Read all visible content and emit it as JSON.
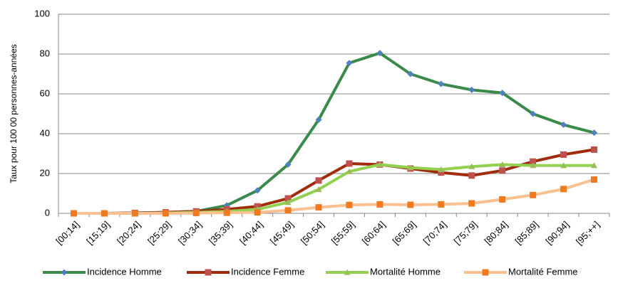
{
  "chart_data": {
    "type": "line",
    "ylabel": "Taux pour 100 00 personnes-années",
    "categories": [
      "[00;14]",
      "[15;19]",
      "[20;24]",
      "[25;29]",
      "[30;34]",
      "[35;39]",
      "[40;44]",
      "[45;49]",
      "[50;54]",
      "[55;59]",
      "[60;64]",
      "[65;69]",
      "[70;74]",
      "[75;79]",
      "[80;84]",
      "[85;89]",
      "[90;94]",
      "[95;++]"
    ],
    "series": [
      {
        "name": "Incidence Homme",
        "color": "#3a8a4a",
        "marker": "diamond",
        "marker_color": "#4f81bd",
        "values": [
          0,
          0,
          0.2,
          0.5,
          1,
          4,
          11.5,
          24.5,
          47,
          75.5,
          80.5,
          70,
          65,
          62,
          60.5,
          50,
          44.5,
          40.5
        ]
      },
      {
        "name": "Incidence Femme",
        "color": "#a02c0c",
        "marker": "square",
        "marker_color": "#c0504d",
        "values": [
          0,
          0,
          0.2,
          0.5,
          1,
          2,
          3.5,
          7.5,
          16.5,
          25,
          24.5,
          22.5,
          20.5,
          19,
          21.5,
          26,
          29.5,
          32
        ]
      },
      {
        "name": "Mortalité Homme",
        "color": "#92d050",
        "marker": "triangle",
        "marker_color": "#9bbb59",
        "values": [
          0,
          0,
          0,
          0.2,
          0.5,
          1,
          2,
          5.5,
          12,
          21,
          24.5,
          23,
          22,
          23.5,
          24.5,
          24,
          24,
          24
        ]
      },
      {
        "name": "Mortalité Femme",
        "color": "#fac090",
        "marker": "square",
        "marker_color": "#f07a20",
        "values": [
          0,
          0,
          0,
          0,
          0.2,
          0.3,
          0.5,
          1.5,
          3,
          4.2,
          4.5,
          4.3,
          4.5,
          5,
          7,
          9.2,
          12.2,
          17
        ]
      }
    ],
    "ylim": [
      0,
      100
    ],
    "yticks": [
      0,
      20,
      40,
      60,
      80,
      100
    ],
    "grid": true,
    "legend": "bottom"
  }
}
